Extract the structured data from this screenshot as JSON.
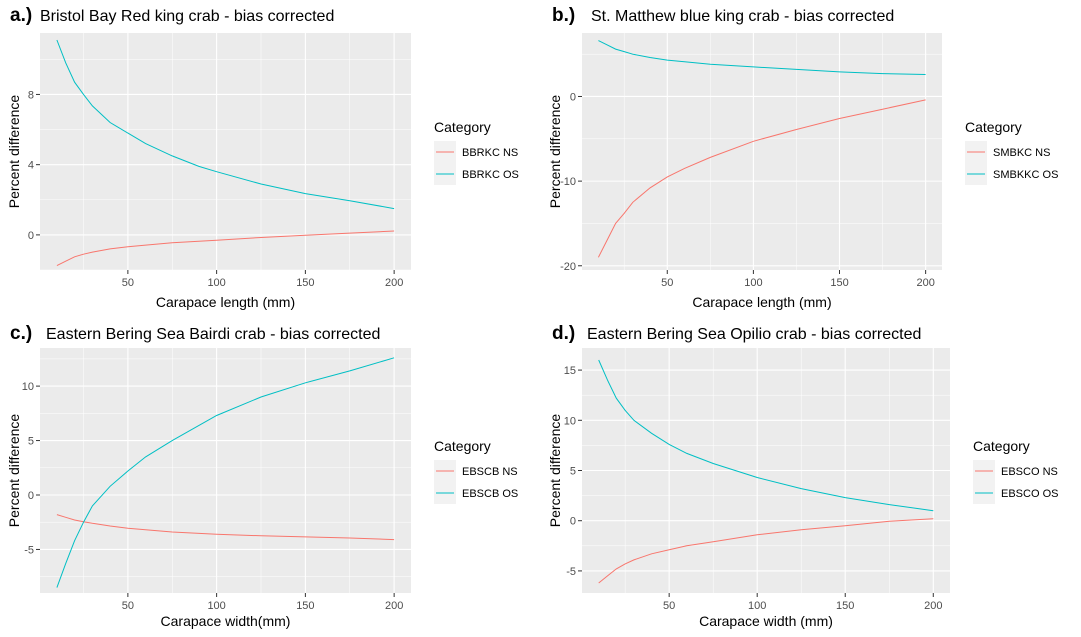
{
  "colors": {
    "ns": "#F8766D",
    "os": "#00BFC4"
  },
  "chart_data": [
    {
      "type": "line",
      "letter": "a.)",
      "title": "Bristol Bay Red king crab - bias corrected",
      "xlabel": "Carapace length (mm)",
      "ylabel": "Percent difference",
      "xlim": [
        0.5,
        209.5
      ],
      "ylim": [
        -2.0,
        11.5
      ],
      "x_ticks": [
        50,
        100,
        150,
        200
      ],
      "y_ticks": [
        0,
        4,
        8
      ],
      "legend_title": "Category",
      "legend_position": "right",
      "grid": true,
      "series": [
        {
          "name": "BBRKC NS",
          "color_key": "ns",
          "x": [
            10,
            15,
            20,
            25,
            30,
            40,
            50,
            60,
            75,
            100,
            125,
            150,
            175,
            200
          ],
          "y": [
            -1.75,
            -1.5,
            -1.25,
            -1.1,
            -0.98,
            -0.8,
            -0.68,
            -0.58,
            -0.45,
            -0.3,
            -0.15,
            -0.02,
            0.1,
            0.22
          ]
        },
        {
          "name": "BBRKC OS",
          "color_key": "os",
          "x": [
            10,
            15,
            20,
            25,
            30,
            40,
            50,
            60,
            75,
            90,
            100,
            125,
            150,
            175,
            200
          ],
          "y": [
            11.1,
            9.8,
            8.7,
            8.0,
            7.35,
            6.4,
            5.8,
            5.2,
            4.5,
            3.9,
            3.6,
            2.9,
            2.35,
            1.95,
            1.5
          ]
        }
      ]
    },
    {
      "type": "line",
      "letter": "b.)",
      "title": "St. Matthew blue king crab - bias corrected",
      "xlabel": "Carapace length (mm)",
      "ylabel": "Percent difference",
      "xlim": [
        0.5,
        209.5
      ],
      "ylim": [
        -20.5,
        7.5
      ],
      "x_ticks": [
        50,
        100,
        150,
        200
      ],
      "y_ticks": [
        -20,
        -10,
        0
      ],
      "legend_title": "Category",
      "legend_position": "right",
      "grid": true,
      "series": [
        {
          "name": "SMBKC NS",
          "color_key": "ns",
          "x": [
            10,
            15,
            20,
            25,
            30,
            40,
            50,
            60,
            75,
            100,
            125,
            150,
            175,
            200
          ],
          "y": [
            -19.0,
            -17.0,
            -15.0,
            -13.8,
            -12.5,
            -10.8,
            -9.5,
            -8.5,
            -7.2,
            -5.3,
            -3.9,
            -2.6,
            -1.5,
            -0.4
          ]
        },
        {
          "name": "SMBKKC OS",
          "color_key": "os",
          "x": [
            10,
            15,
            20,
            25,
            30,
            40,
            50,
            60,
            75,
            100,
            125,
            150,
            175,
            200
          ],
          "y": [
            6.6,
            6.1,
            5.6,
            5.3,
            5.0,
            4.6,
            4.3,
            4.1,
            3.8,
            3.5,
            3.2,
            2.9,
            2.7,
            2.6
          ]
        }
      ]
    },
    {
      "type": "line",
      "letter": "c.)",
      "title": "Eastern Bering Sea Bairdi crab - bias corrected",
      "xlabel": "Carapace width(mm)",
      "ylabel": "Percent difference",
      "xlim": [
        0.5,
        209.5
      ],
      "ylim": [
        -9.0,
        13.5
      ],
      "x_ticks": [
        50,
        100,
        150,
        200
      ],
      "y_ticks": [
        -5,
        0,
        5,
        10
      ],
      "legend_title": "Category",
      "legend_position": "right",
      "grid": true,
      "series": [
        {
          "name": "EBSCB NS",
          "color_key": "ns",
          "x": [
            10,
            15,
            20,
            25,
            30,
            40,
            50,
            60,
            75,
            100,
            125,
            150,
            175,
            200
          ],
          "y": [
            -1.8,
            -2.05,
            -2.3,
            -2.45,
            -2.6,
            -2.85,
            -3.05,
            -3.2,
            -3.4,
            -3.6,
            -3.75,
            -3.85,
            -3.95,
            -4.1
          ]
        },
        {
          "name": "EBSCB OS",
          "color_key": "os",
          "x": [
            10,
            15,
            20,
            25,
            30,
            40,
            50,
            60,
            75,
            100,
            125,
            150,
            175,
            200
          ],
          "y": [
            -8.5,
            -6.3,
            -4.2,
            -2.5,
            -1.0,
            0.8,
            2.2,
            3.5,
            5.0,
            7.3,
            9.0,
            10.3,
            11.4,
            12.6
          ]
        }
      ]
    },
    {
      "type": "line",
      "letter": "d.)",
      "title": "Eastern Bering Sea Opilio crab - bias corrected",
      "xlabel": "Carapace width (mm)",
      "ylabel": "Percent difference",
      "xlim": [
        0.5,
        209.5
      ],
      "ylim": [
        -7.2,
        17.2
      ],
      "x_ticks": [
        50,
        100,
        150,
        200
      ],
      "y_ticks": [
        -5,
        0,
        5,
        10,
        15
      ],
      "legend_title": "Category",
      "legend_position": "right",
      "grid": true,
      "series": [
        {
          "name": "EBSCO NS",
          "color_key": "ns",
          "x": [
            10,
            15,
            20,
            25,
            30,
            40,
            50,
            60,
            75,
            100,
            125,
            150,
            175,
            200
          ],
          "y": [
            -6.2,
            -5.5,
            -4.8,
            -4.3,
            -3.9,
            -3.3,
            -2.9,
            -2.5,
            -2.1,
            -1.4,
            -0.9,
            -0.5,
            -0.05,
            0.2
          ]
        },
        {
          "name": "EBSCO OS",
          "color_key": "os",
          "x": [
            10,
            15,
            20,
            25,
            30,
            40,
            50,
            60,
            75,
            100,
            125,
            150,
            175,
            200
          ],
          "y": [
            16.0,
            14.0,
            12.2,
            11.0,
            10.0,
            8.7,
            7.6,
            6.7,
            5.7,
            4.3,
            3.2,
            2.3,
            1.6,
            1.0
          ]
        }
      ]
    }
  ]
}
